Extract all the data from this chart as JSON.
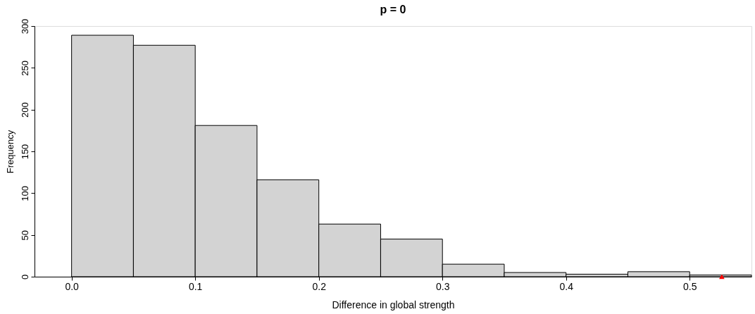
{
  "chart_data": {
    "type": "histogram",
    "title": "p = 0",
    "xlabel": "Difference in global strength",
    "ylabel": "Frequency",
    "bins": [
      0.0,
      0.05,
      0.1,
      0.15,
      0.2,
      0.25,
      0.3,
      0.35,
      0.4,
      0.45,
      0.5,
      0.55
    ],
    "values": [
      289,
      277,
      181,
      116,
      63,
      45,
      15,
      5,
      3,
      6,
      2
    ],
    "color": "#d3d3d3",
    "series": [
      {
        "type": "scatter",
        "x": [
          0.526
        ],
        "values": [
          0
        ],
        "color": "#ff0000",
        "marker": "triangle"
      }
    ],
    "xlim": [
      -0.03,
      0.55
    ],
    "xticks": [
      {
        "value": 0.0,
        "label": "0.0"
      },
      0.1,
      0.2,
      0.3,
      0.4,
      0.5
    ],
    "ylim": [
      0,
      300
    ],
    "yticks": [
      0,
      50,
      100,
      150,
      200,
      250,
      300
    ],
    "grid": false
  }
}
